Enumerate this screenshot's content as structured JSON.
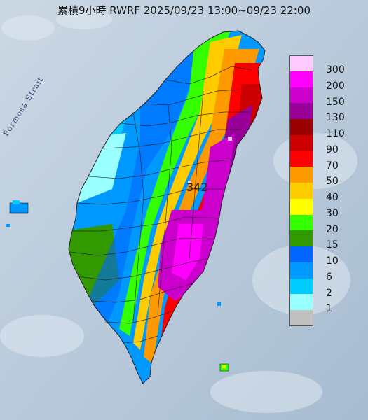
{
  "header": {
    "title": "累積9小時 RWRF 2025/09/23 13:00~09/23 22:00"
  },
  "map": {
    "strait_label": "Formosa Strait",
    "max_value_label": "342"
  },
  "legend": {
    "unit": "",
    "items": [
      {
        "label": "300",
        "color": "#ffcaff"
      },
      {
        "label": "200",
        "color": "#ff00ff"
      },
      {
        "label": "150",
        "color": "#cc00cc"
      },
      {
        "label": "130",
        "color": "#990099"
      },
      {
        "label": "110",
        "color": "#990000"
      },
      {
        "label": "90",
        "color": "#cc0000"
      },
      {
        "label": "70",
        "color": "#ff0000"
      },
      {
        "label": "50",
        "color": "#ff9900"
      },
      {
        "label": "40",
        "color": "#ffcc00"
      },
      {
        "label": "30",
        "color": "#ffff00"
      },
      {
        "label": "20",
        "color": "#33ff00"
      },
      {
        "label": "15",
        "color": "#339900"
      },
      {
        "label": "10",
        "color": "#0066ff"
      },
      {
        "label": "6",
        "color": "#0099ff"
      },
      {
        "label": "2",
        "color": "#00ccff"
      },
      {
        "label": "1",
        "color": "#99ffff"
      },
      {
        "label": "",
        "color": "#c0c0c0"
      }
    ]
  }
}
